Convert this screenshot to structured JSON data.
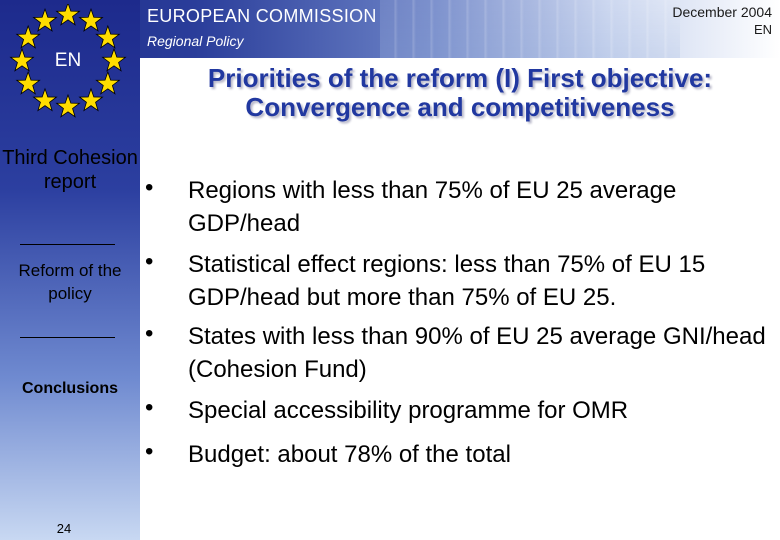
{
  "header": {
    "organization": "EUROPEAN COMMISSION",
    "directorate": "Regional Policy",
    "date": "December 2004",
    "language_tag": "EN"
  },
  "flag": {
    "language": "EN",
    "star_color": "#ffdd00",
    "field_color": "#1d2a8c"
  },
  "sidebar": {
    "items": [
      {
        "label": "Third Cohesion report"
      },
      {
        "label": "Reform of the policy"
      },
      {
        "label": "Conclusions"
      }
    ],
    "page_number": "24"
  },
  "slide": {
    "title": "Priorities of the reform (I) First objective: Convergence and competitiveness",
    "title_color": "#2138a0",
    "bullets": [
      {
        "marker": "•",
        "text": "Regions  with less than 75% of EU 25 average GDP/head"
      },
      {
        "marker": "•",
        "text": "Statistical effect regions: less than 75% of EU 15 GDP/head but more than 75% of EU 25."
      },
      {
        "marker": "•",
        "text": "States with less than 90% of EU 25 average GNI/head (Cohesion Fund)"
      },
      {
        "marker": "•",
        "text": "Special accessibility programme for OMR"
      },
      {
        "marker": "•",
        "text": "Budget: about 78% of the total"
      }
    ]
  }
}
